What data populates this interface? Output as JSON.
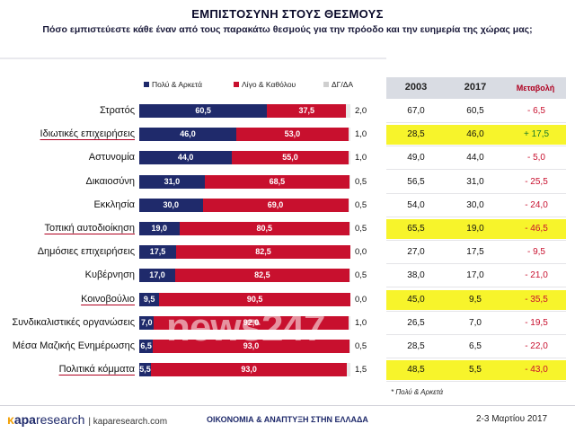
{
  "header": {
    "title": "ΕΜΠΙΣΤΟΣΥΝΗ ΣΤΟΥΣ ΘΕΣΜΟΥΣ",
    "subtitle": "Πόσο εμπιστεύεστε κάθε έναν από τους παρακάτω θεσμούς για την πρόοδο και την ευημερία της χώρας μας;"
  },
  "legend": {
    "series1": "Πολύ & Αρκετά",
    "series2": "Λίγο & Καθόλου",
    "series3": "ΔΓ/ΔΑ"
  },
  "table_header": {
    "col1": "2003",
    "col2": "2017",
    "col3": "Μεταβολή"
  },
  "colors": {
    "blue": "#1f2a6b",
    "red": "#c8102e",
    "grey": "#e8e8e8",
    "highlight": "#f7f42b"
  },
  "chart_data": {
    "type": "bar",
    "stacked": true,
    "orientation": "horizontal",
    "categories": [
      "Στρατός",
      "Ιδιωτικές επιχειρήσεις",
      "Αστυνομία",
      "Δικαιοσύνη",
      "Εκκλησία",
      "Τοπική αυτοδιοίκηση",
      "Δημόσιες επιχειρήσεις",
      "Κυβέρνηση",
      "Κοινοβούλιο",
      "Συνδικαλιστικές οργανώσεις",
      "Μέσα Μαζικής Ενημέρωσης",
      "Πολιτικά κόμματα"
    ],
    "highlighted": [
      false,
      true,
      false,
      false,
      false,
      true,
      false,
      false,
      true,
      false,
      false,
      true
    ],
    "series": [
      {
        "name": "Πολύ & Αρκετά",
        "values": [
          60.5,
          46.0,
          44.0,
          31.0,
          30.0,
          19.0,
          17.5,
          17.0,
          9.5,
          7.0,
          6.5,
          5.5
        ]
      },
      {
        "name": "Λίγο & Καθόλου",
        "values": [
          37.5,
          53.0,
          55.0,
          68.5,
          69.0,
          80.5,
          82.5,
          82.5,
          90.5,
          92.0,
          93.0,
          93.0
        ]
      },
      {
        "name": "ΔΓ/ΔΑ",
        "values": [
          2.0,
          1.0,
          1.0,
          0.5,
          0.5,
          0.5,
          0.0,
          0.5,
          0.0,
          1.0,
          0.5,
          1.5
        ]
      }
    ],
    "series1_labels": [
      "60,5",
      "46,0",
      "44,0",
      "31,0",
      "30,0",
      "19,0",
      "17,5",
      "17,0",
      "9,5",
      "7,0",
      "6,5",
      "5,5"
    ],
    "series2_labels": [
      "37,5",
      "53,0",
      "55,0",
      "68,5",
      "69,0",
      "80,5",
      "82,5",
      "82,5",
      "90,5",
      "92,0",
      "93,0",
      "93,0"
    ],
    "series3_labels": [
      "2,0",
      "1,0",
      "1,0",
      "0,5",
      "0,5",
      "0,5",
      "0,0",
      "0,5",
      "0,0",
      "1,0",
      "0,5",
      "1,5"
    ],
    "table": {
      "columns": [
        "2003",
        "2017",
        "Μεταβολή"
      ],
      "rows": [
        [
          "67,0",
          "60,5",
          "- 6,5"
        ],
        [
          "28,5",
          "46,0",
          "+ 17,5"
        ],
        [
          "49,0",
          "44,0",
          "- 5,0"
        ],
        [
          "56,5",
          "31,0",
          "- 25,5"
        ],
        [
          "54,0",
          "30,0",
          "- 24,0"
        ],
        [
          "65,5",
          "19,0",
          "- 46,5"
        ],
        [
          "27,0",
          "17,5",
          "- 9,5"
        ],
        [
          "38,0",
          "17,0",
          "- 21,0"
        ],
        [
          "45,0",
          "9,5",
          "- 35,5"
        ],
        [
          "26,5",
          "7,0",
          "- 19,5"
        ],
        [
          "28,5",
          "6,5",
          "- 22,0"
        ],
        [
          "48,5",
          "5,5",
          "- 43,0"
        ]
      ]
    },
    "xlim": [
      0,
      100
    ]
  },
  "footer": {
    "note": "* Πολύ & Αρκετά",
    "brand_k": "κ",
    "brand_apa": "apa",
    "brand_research": "research",
    "site": "| kaparesearch.com",
    "org": "ΟΙΚΟΝΟΜΙΑ & ΑΝΑΠΤΥΞΗ ΣΤΗΝ ΕΛΛΑΔΑ",
    "date": "2-3 Μαρτίου 2017"
  }
}
